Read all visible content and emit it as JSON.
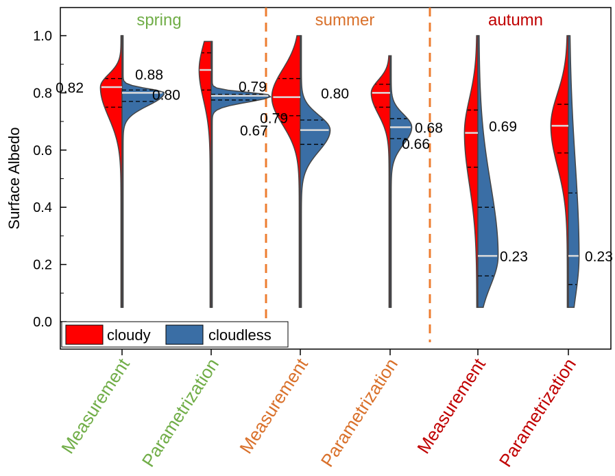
{
  "chart_data": {
    "type": "split-violin",
    "ylabel": "Surface Albedo",
    "ylim": [
      -0.1,
      1.1
    ],
    "yticks": [
      "0.0",
      "0.2",
      "0.4",
      "0.6",
      "0.8",
      "1.0"
    ],
    "grid": false,
    "legend": {
      "placement": "bottom-left",
      "items": [
        {
          "label": "cloudy",
          "color": "#ff0000"
        },
        {
          "label": "cloudless",
          "color": "#3a6ea5"
        }
      ]
    },
    "seasons": [
      {
        "label": "spring",
        "color": "#70ad47"
      },
      {
        "label": "summer",
        "color": "#d9702a"
      },
      {
        "label": "autumn",
        "color": "#c00000"
      }
    ],
    "categories": [
      "Measurement",
      "Parametrization",
      "Measurement",
      "Parametrization",
      "Measurement",
      "Parametrization"
    ],
    "category_colors": [
      "#70ad47",
      "#70ad47",
      "#d9702a",
      "#d9702a",
      "#c00000",
      "#c00000"
    ],
    "series": [
      {
        "name": "cloudy",
        "side": "left",
        "medians": [
          0.82,
          0.88,
          0.785,
          0.8,
          0.66,
          0.685
        ],
        "median_labels": [
          "0.82",
          "0.88",
          "0.79",
          "0.80",
          "0.66",
          "0.69"
        ],
        "quartiles": [
          [
            0.75,
            0.85
          ],
          [
            0.81,
            0.94
          ],
          [
            0.72,
            0.85
          ],
          [
            0.75,
            0.83
          ],
          [
            0.54,
            0.74
          ],
          [
            0.59,
            0.76
          ]
        ],
        "range": [
          [
            0.05,
            1.0
          ],
          [
            0.05,
            0.98
          ],
          [
            0.05,
            1.0
          ],
          [
            0.05,
            0.93
          ],
          [
            0.05,
            1.0
          ],
          [
            0.05,
            1.0
          ]
        ]
      },
      {
        "name": "cloudless",
        "side": "right",
        "medians": [
          0.8,
          0.79,
          0.67,
          0.68,
          0.23,
          0.23
        ],
        "median_labels": [
          "0.80",
          "0.79",
          "0.67",
          "0.68",
          "0.23",
          "0.23"
        ],
        "quartiles": [
          [
            0.77,
            0.81
          ],
          [
            0.775,
            0.795
          ],
          [
            0.62,
            0.705
          ],
          [
            0.64,
            0.71
          ],
          [
            0.16,
            0.4
          ],
          [
            0.13,
            0.45
          ]
        ],
        "range": [
          [
            0.05,
            1.0
          ],
          [
            0.05,
            0.98
          ],
          [
            0.05,
            1.0
          ],
          [
            0.05,
            0.93
          ],
          [
            0.05,
            1.0
          ],
          [
            0.05,
            1.0
          ]
        ]
      }
    ]
  }
}
